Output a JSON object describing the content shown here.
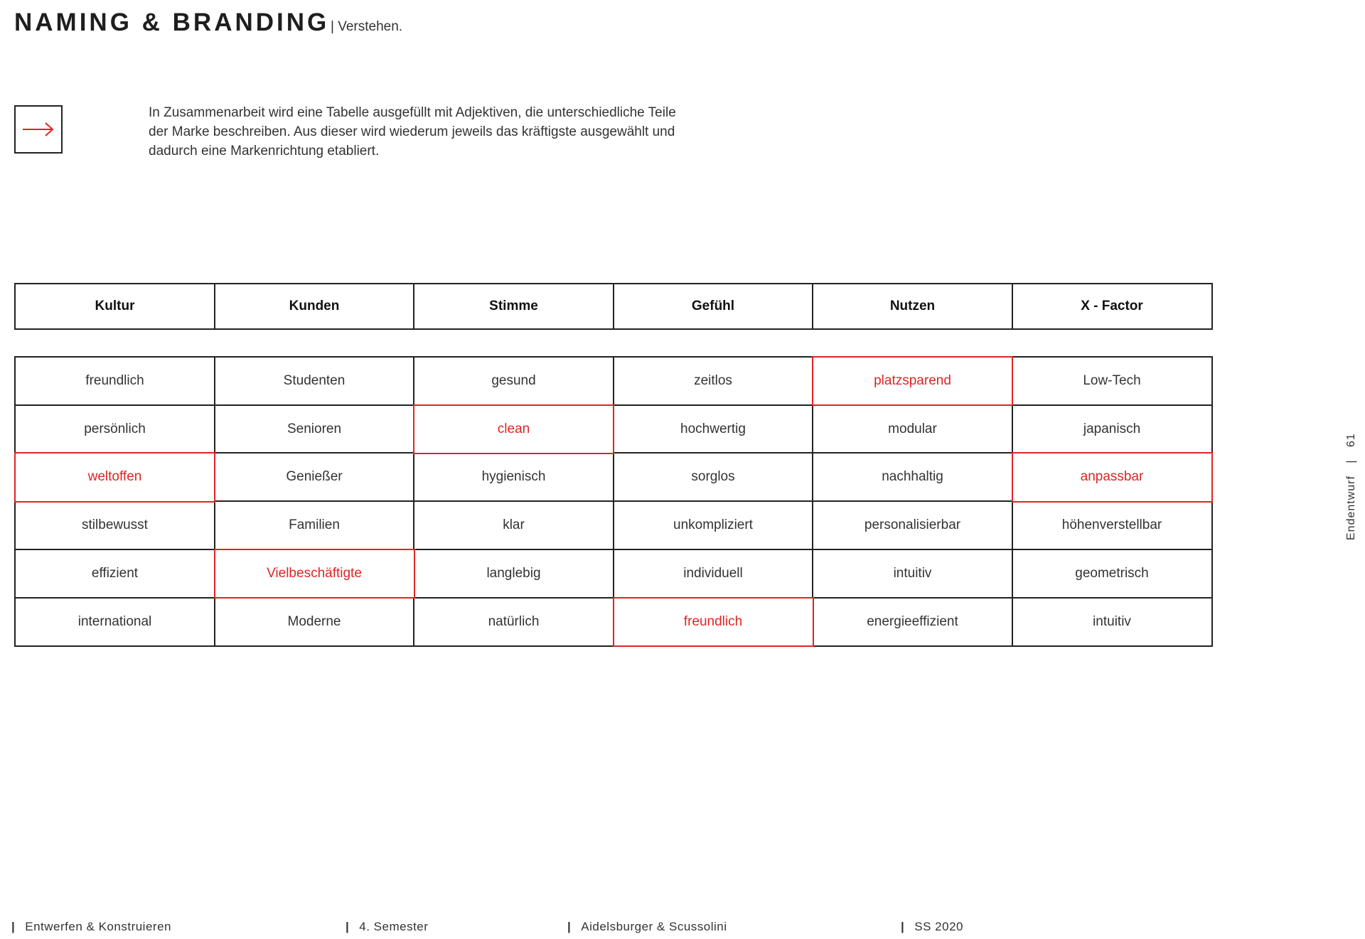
{
  "header": {
    "title": "NAMING & BRANDING",
    "subtitle": "| Verstehen."
  },
  "intro": {
    "icon": "arrow-right-icon",
    "text": "In Zusammenarbeit wird eine Tabelle ausgefüllt mit Adjektiven, die unterschiedliche Teile der Marke beschreiben. Aus dieser wird wiederum jeweils das kräftigste ausgewählt und dadurch eine Markenrichtung etabliert."
  },
  "colors": {
    "accent": "#e02424",
    "border": "#222222"
  },
  "table": {
    "columns": [
      "Kultur",
      "Kunden",
      "Stimme",
      "Gefühl",
      "Nutzen",
      "X - Factor"
    ],
    "rows": [
      [
        "freundlich",
        "Studenten",
        "gesund",
        "zeitlos",
        "platzsparend",
        "Low-Tech"
      ],
      [
        "persönlich",
        "Senioren",
        "clean",
        "hochwertig",
        "modular",
        "japanisch"
      ],
      [
        "weltoffen",
        "Genießer",
        "hygienisch",
        "sorglos",
        "nachhaltig",
        "anpassbar"
      ],
      [
        "stilbewusst",
        "Familien",
        "klar",
        "unkompliziert",
        "personalisierbar",
        "höhenverstellbar"
      ],
      [
        "effizient",
        "Vielbeschäftigte",
        "langlebig",
        "individuell",
        "intuitiv",
        "geometrisch"
      ],
      [
        "international",
        "Moderne",
        "natürlich",
        "freundlich",
        "energieeffizient",
        "intuitiv"
      ]
    ],
    "selected": [
      [
        0,
        4
      ],
      [
        1,
        2
      ],
      [
        2,
        0
      ],
      [
        2,
        5
      ],
      [
        4,
        1
      ],
      [
        5,
        3
      ]
    ]
  },
  "side": {
    "section": "Endentwurf",
    "separator": "|",
    "page": "61"
  },
  "footer": [
    {
      "bar": "|",
      "label": "Entwerfen & Konstruieren"
    },
    {
      "bar": "|",
      "label": "4. Semester"
    },
    {
      "bar": "|",
      "label": "Aidelsburger &  Scussolini"
    },
    {
      "bar": "|",
      "label": "SS 2020"
    }
  ]
}
